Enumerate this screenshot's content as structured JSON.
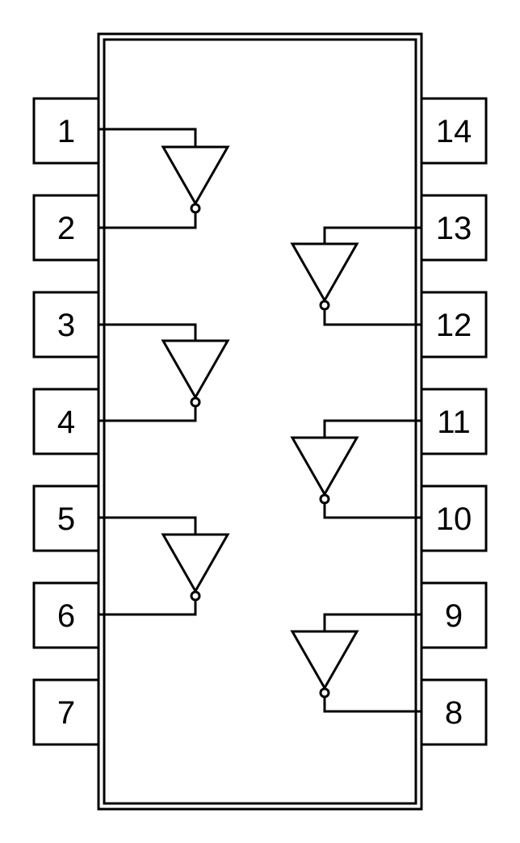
{
  "colors": {
    "stroke": "#000000",
    "background": "#ffffff"
  },
  "pins": {
    "left": [
      "1",
      "2",
      "3",
      "4",
      "5",
      "6",
      "7"
    ],
    "right": [
      "14",
      "13",
      "12",
      "11",
      "10",
      "9",
      "8"
    ]
  },
  "gates": [
    {
      "type": "inverter",
      "input_pin": "1",
      "output_pin": "2"
    },
    {
      "type": "inverter",
      "input_pin": "3",
      "output_pin": "4"
    },
    {
      "type": "inverter",
      "input_pin": "5",
      "output_pin": "6"
    },
    {
      "type": "inverter",
      "input_pin": "13",
      "output_pin": "12"
    },
    {
      "type": "inverter",
      "input_pin": "11",
      "output_pin": "10"
    },
    {
      "type": "inverter",
      "input_pin": "9",
      "output_pin": "8"
    }
  ]
}
